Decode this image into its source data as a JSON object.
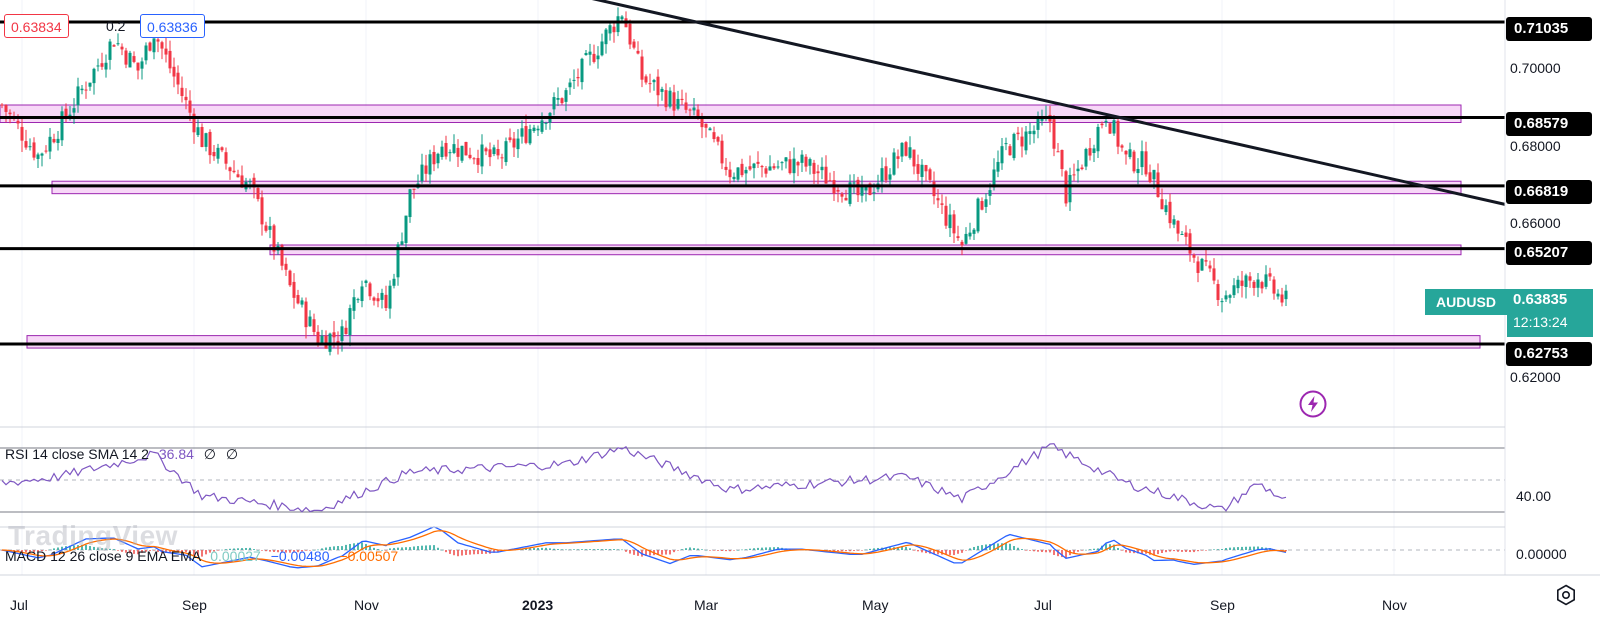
{
  "header": {
    "price_red": "0.63834",
    "step": "0.2",
    "price_blue": "0.63836"
  },
  "symbol": "AUDUSD",
  "last_price": "0.63835",
  "countdown": "12:13:24",
  "watermark": "TradingView",
  "levels": [
    {
      "label": "0.71035",
      "value": 0.71035
    },
    {
      "label": "0.68579",
      "value": 0.68579
    },
    {
      "label": "0.66819",
      "value": 0.66819
    },
    {
      "label": "0.65207",
      "value": 0.65207
    },
    {
      "label": "0.62753",
      "value": 0.62753
    }
  ],
  "y_ticks": [
    {
      "label": "0.70000",
      "value": 0.7
    },
    {
      "label": "0.68000",
      "value": 0.68
    },
    {
      "label": "0.66000",
      "value": 0.66
    },
    {
      "label": "0.62000",
      "value": 0.62
    }
  ],
  "date_axis": [
    {
      "label": "Jul",
      "index": 5
    },
    {
      "label": "Sep",
      "index": 48
    },
    {
      "label": "Nov",
      "index": 91
    },
    {
      "label": "2023",
      "index": 134
    },
    {
      "label": "Mar",
      "index": 176
    },
    {
      "label": "May",
      "index": 218
    },
    {
      "label": "Jul",
      "index": 261
    },
    {
      "label": "Sep",
      "index": 305
    },
    {
      "label": "Nov",
      "index": 348
    }
  ],
  "rsi": {
    "label": "RSI 14 close SMA 14 2",
    "value": "36.84",
    "na1": "∅",
    "na2": "∅",
    "tick": "40.00"
  },
  "macd": {
    "label": "MACD 12 26 close 9 EMA EMA",
    "hist": "0.00027",
    "macd": "−0.00480",
    "signal": "−0.00507",
    "tick": "0.00000"
  },
  "colors": {
    "up": "#089981",
    "down": "#f23645",
    "zone_fill": "#f3c6f3",
    "zone_border": "#9c27b0",
    "rsi_line": "#7e57c2",
    "macd_line": "#2962ff",
    "signal_line": "#ff6d00"
  },
  "chart_data": {
    "type": "candlestick",
    "title": "AUDUSD",
    "ylim": [
      0.608,
      0.716
    ],
    "horizontal_levels": [
      0.71035,
      0.68579,
      0.66819,
      0.65207,
      0.62753
    ],
    "zones": [
      {
        "low": 0.6845,
        "high": 0.689
      },
      {
        "low": 0.6662,
        "high": 0.6694
      },
      {
        "low": 0.6505,
        "high": 0.653
      },
      {
        "low": 0.6265,
        "high": 0.6297
      }
    ],
    "trendline": {
      "start": {
        "index": 147,
        "price": 0.7165
      },
      "end": {
        "index": 357,
        "price": 0.6678
      }
    },
    "close_waypoints": [
      {
        "index": 0,
        "close": 0.689
      },
      {
        "index": 9,
        "close": 0.676
      },
      {
        "index": 14,
        "close": 0.683
      },
      {
        "index": 28,
        "close": 0.706
      },
      {
        "index": 34,
        "close": 0.698
      },
      {
        "index": 38,
        "close": 0.708
      },
      {
        "index": 50,
        "close": 0.68
      },
      {
        "index": 62,
        "close": 0.668
      },
      {
        "index": 66,
        "close": 0.658
      },
      {
        "index": 72,
        "close": 0.642
      },
      {
        "index": 79,
        "close": 0.629
      },
      {
        "index": 85,
        "close": 0.63
      },
      {
        "index": 90,
        "close": 0.645
      },
      {
        "index": 96,
        "close": 0.637
      },
      {
        "index": 102,
        "close": 0.666
      },
      {
        "index": 110,
        "close": 0.679
      },
      {
        "index": 124,
        "close": 0.675
      },
      {
        "index": 141,
        "close": 0.692
      },
      {
        "index": 155,
        "close": 0.713
      },
      {
        "index": 160,
        "close": 0.696
      },
      {
        "index": 174,
        "close": 0.685
      },
      {
        "index": 182,
        "close": 0.672
      },
      {
        "index": 200,
        "close": 0.674
      },
      {
        "index": 215,
        "close": 0.665
      },
      {
        "index": 226,
        "close": 0.678
      },
      {
        "index": 240,
        "close": 0.653
      },
      {
        "index": 251,
        "close": 0.678
      },
      {
        "index": 262,
        "close": 0.685
      },
      {
        "index": 266,
        "close": 0.666
      },
      {
        "index": 276,
        "close": 0.687
      },
      {
        "index": 281,
        "close": 0.675
      },
      {
        "index": 286,
        "close": 0.674
      },
      {
        "index": 294,
        "close": 0.656
      },
      {
        "index": 305,
        "close": 0.64
      },
      {
        "index": 314,
        "close": 0.645
      },
      {
        "index": 319,
        "close": 0.64
      },
      {
        "index": 321,
        "close": 0.6383
      }
    ],
    "rsi_waypoints": [
      {
        "index": 0,
        "value": 48
      },
      {
        "index": 14,
        "value": 52
      },
      {
        "index": 38,
        "value": 66
      },
      {
        "index": 50,
        "value": 40
      },
      {
        "index": 79,
        "value": 31
      },
      {
        "index": 102,
        "value": 55
      },
      {
        "index": 141,
        "value": 60
      },
      {
        "index": 155,
        "value": 70
      },
      {
        "index": 182,
        "value": 44
      },
      {
        "index": 226,
        "value": 52
      },
      {
        "index": 240,
        "value": 38
      },
      {
        "index": 262,
        "value": 71
      },
      {
        "index": 281,
        "value": 48
      },
      {
        "index": 305,
        "value": 31
      },
      {
        "index": 314,
        "value": 48
      },
      {
        "index": 321,
        "value": 37
      }
    ]
  }
}
